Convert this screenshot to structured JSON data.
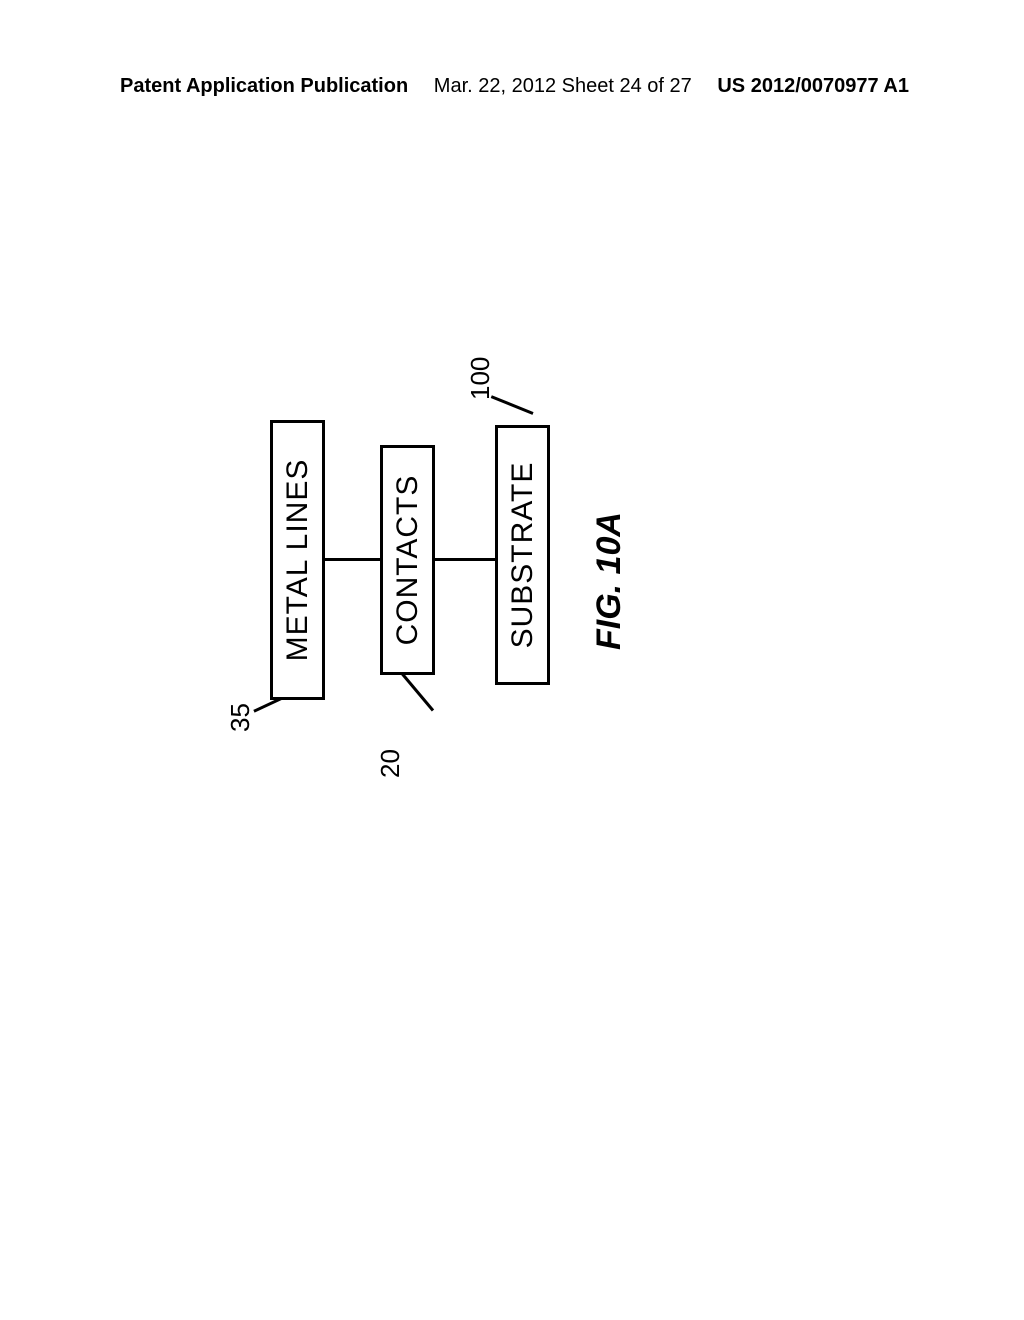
{
  "header": {
    "left": "Patent Application Publication",
    "center": "Mar. 22, 2012  Sheet 24 of 27",
    "right": "US 2012/0070977 A1"
  },
  "diagram": {
    "boxes": {
      "metal_lines": {
        "label": "METAL LINES",
        "ref_number": "35"
      },
      "contacts": {
        "label": "CONTACTS",
        "ref_number": "20"
      },
      "substrate": {
        "label": "SUBSTRATE",
        "ref_number": "100"
      }
    }
  },
  "figure_label": "FIG. 10A",
  "styling": {
    "background_color": "#ffffff",
    "box_border_color": "#000000",
    "box_border_width": 3,
    "text_color": "#000000",
    "box_font_size": 30,
    "label_font_size": 26,
    "header_font_size": 20,
    "figure_label_font_size": 34
  }
}
